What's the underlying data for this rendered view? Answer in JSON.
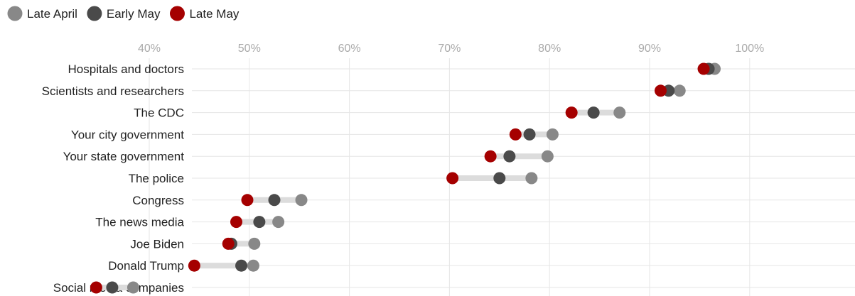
{
  "chart_data": {
    "type": "dot-plot",
    "title": "",
    "xlabel": "",
    "ylabel": "",
    "x_axis": {
      "min": 34,
      "max": 102,
      "ticks": [
        40,
        50,
        60,
        70,
        80,
        90,
        100
      ],
      "tick_labels": [
        "40%",
        "50%",
        "60%",
        "70%",
        "80%",
        "90%",
        "100%"
      ],
      "position": "top"
    },
    "grid": true,
    "legend": {
      "placement": "top-left"
    },
    "categories": [
      "Hospitals and doctors",
      "Scientists and researchers",
      "The CDC",
      "Your city government",
      "Your state government",
      "The police",
      "Congress",
      "The news media",
      "Joe Biden",
      "Donald Trump",
      "Social media companies"
    ],
    "series": [
      {
        "name": "Late April",
        "color": "#888888",
        "values": [
          96.5,
          93.0,
          87.0,
          80.3,
          79.8,
          78.2,
          55.2,
          52.9,
          50.5,
          50.4,
          38.4
        ]
      },
      {
        "name": "Early May",
        "color": "#4a4a4a",
        "values": [
          95.9,
          91.9,
          84.4,
          78.0,
          76.0,
          75.0,
          52.5,
          51.0,
          48.2,
          49.2,
          36.3
        ]
      },
      {
        "name": "Late May",
        "color": "#a50000",
        "values": [
          95.4,
          91.1,
          82.2,
          76.6,
          74.1,
          70.3,
          49.8,
          48.7,
          47.9,
          44.5,
          34.7
        ]
      }
    ]
  }
}
